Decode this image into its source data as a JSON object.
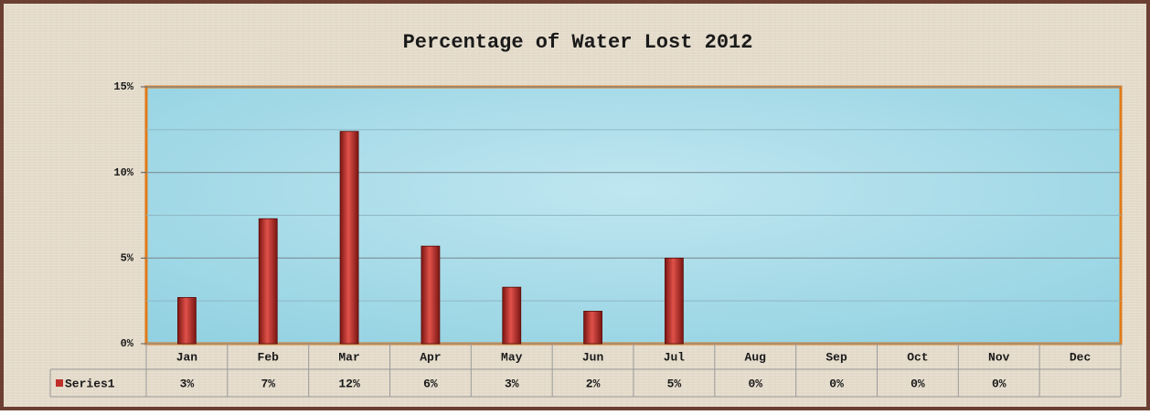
{
  "chart_data": {
    "type": "bar",
    "title": "Percentage of Water Lost 2012",
    "categories": [
      "Jan",
      "Feb",
      "Mar",
      "Apr",
      "May",
      "Jun",
      "Jul",
      "Aug",
      "Sep",
      "Oct",
      "Nov",
      "Dec"
    ],
    "series": [
      {
        "name": "Series1",
        "color": "#c0302a",
        "values": [
          2.7,
          7.3,
          12.4,
          5.7,
          3.3,
          1.9,
          5.0,
          0,
          0,
          0,
          0,
          null
        ],
        "value_labels": [
          "3%",
          "7%",
          "12%",
          "6%",
          "3%",
          "2%",
          "5%",
          "0%",
          "0%",
          "0%",
          "0%",
          null
        ]
      }
    ],
    "ylim": [
      0,
      15
    ],
    "yticks": [
      {
        "value": 0,
        "label": "0%"
      },
      {
        "value": 5,
        "label": "5%"
      },
      {
        "value": 10,
        "label": "10%"
      },
      {
        "value": 15,
        "label": "15%"
      }
    ],
    "minor_yticks": [
      2.5,
      7.5,
      12.5
    ],
    "grid": true
  }
}
